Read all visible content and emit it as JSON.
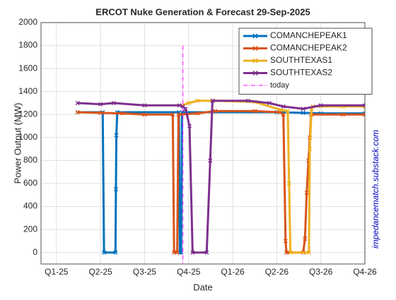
{
  "chart_data": {
    "type": "line",
    "title": "ERCOT Nuke Generation & Forecast 29-Sep-2025",
    "xlabel": "Date",
    "ylabel": "Power Output (MW)",
    "annotation": "impedancematch.substack.com",
    "xlim": [
      -0.35,
      7
    ],
    "xticks": [
      {
        "value": 0,
        "label": "Q1-25"
      },
      {
        "value": 1,
        "label": "Q2-25"
      },
      {
        "value": 2,
        "label": "Q3-25"
      },
      {
        "value": 3,
        "label": "Q4-25"
      },
      {
        "value": 4,
        "label": "Q1-26"
      },
      {
        "value": 5,
        "label": "Q2-26"
      },
      {
        "value": 6,
        "label": "Q3-26"
      },
      {
        "value": 7,
        "label": "Q4-26"
      }
    ],
    "ylim": [
      -100,
      2000
    ],
    "yticks": [
      0,
      200,
      400,
      600,
      800,
      1000,
      1200,
      1400,
      1600,
      1800,
      2000
    ],
    "grid": true,
    "legend": "top-right",
    "series": [
      {
        "name": "COMANCHEPEAK1",
        "color": "#0072BD",
        "x": [
          0.48,
          1.05,
          1.08,
          1.34,
          1.35,
          1.36,
          1.38,
          2.78,
          2.8,
          2.83,
          2.85,
          5.0,
          5.6,
          6.0,
          7.0
        ],
        "values": [
          1220,
          1220,
          0,
          0,
          550,
          1020,
          1220,
          1220,
          0,
          0,
          1220,
          1220,
          1215,
          1210,
          1210
        ]
      },
      {
        "name": "COMANCHEPEAK2",
        "color": "#D95319",
        "x": [
          0.48,
          1.0,
          1.5,
          2.0,
          2.64,
          2.67,
          2.74,
          2.77,
          3.2,
          3.6,
          4.5,
          5.07,
          5.15,
          5.2,
          5.22,
          5.6,
          5.64,
          5.68,
          5.72,
          5.75,
          5.78,
          6.5,
          7.0
        ],
        "values": [
          1220,
          1215,
          1210,
          1200,
          1200,
          0,
          0,
          1200,
          1210,
          1230,
          1230,
          1220,
          1200,
          100,
          0,
          0,
          120,
          520,
          800,
          1000,
          1200,
          1200,
          1200
        ]
      },
      {
        "name": "SOUTHTEXAS1",
        "color": "#EDB120",
        "x": [
          2.85,
          3.0,
          3.2,
          3.55,
          4.5,
          5.1,
          5.25,
          5.28,
          5.31,
          5.73,
          5.75,
          5.79,
          5.82,
          6.5,
          7.0
        ],
        "values": [
          1280,
          1300,
          1320,
          1320,
          1310,
          1240,
          1230,
          600,
          0,
          0,
          900,
          1250,
          1270,
          1270,
          1270
        ]
      },
      {
        "name": "SOUTHTEXAS2",
        "color": "#7E2F8E",
        "x": [
          0.48,
          1.0,
          1.3,
          2.0,
          2.79,
          2.87,
          2.93,
          3.02,
          3.09,
          3.41,
          3.49,
          3.54,
          4.35,
          4.83,
          5.15,
          5.6,
          6.0,
          7.0
        ],
        "values": [
          1300,
          1290,
          1300,
          1280,
          1280,
          1270,
          1250,
          1100,
          0,
          0,
          800,
          1320,
          1320,
          1300,
          1270,
          1250,
          1280,
          1280
        ]
      }
    ],
    "today": {
      "name": "today",
      "x": 2.87,
      "color": "#FF00FF"
    }
  }
}
